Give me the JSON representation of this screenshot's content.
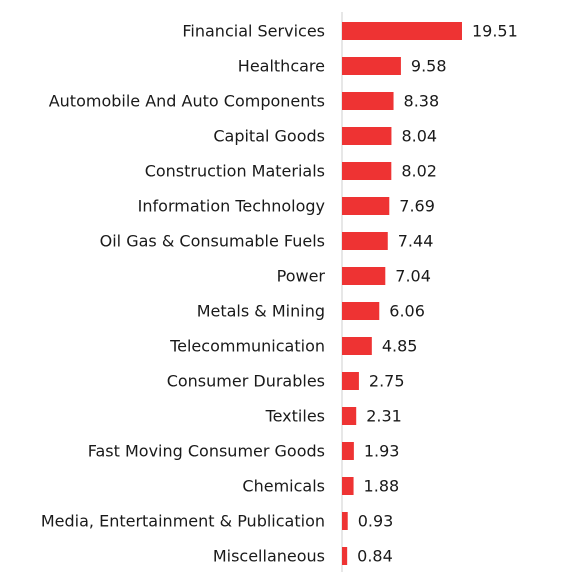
{
  "chart_data": {
    "type": "hbar",
    "color": "#ee3333",
    "categories": [
      "Financial Services",
      "Healthcare",
      "Automobile And Auto Components",
      "Capital Goods",
      "Construction Materials",
      "Information Technology",
      "Oil Gas & Consumable Fuels",
      "Power",
      "Metals & Mining",
      "Telecommunication",
      "Consumer Durables",
      "Textiles",
      "Fast Moving Consumer Goods",
      "Chemicals",
      "Media, Entertainment & Publication",
      "Miscellaneous"
    ],
    "values": [
      19.51,
      9.58,
      8.38,
      8.04,
      8.02,
      7.69,
      7.44,
      7.04,
      6.06,
      4.85,
      2.75,
      2.31,
      1.93,
      1.88,
      0.93,
      0.84
    ]
  }
}
